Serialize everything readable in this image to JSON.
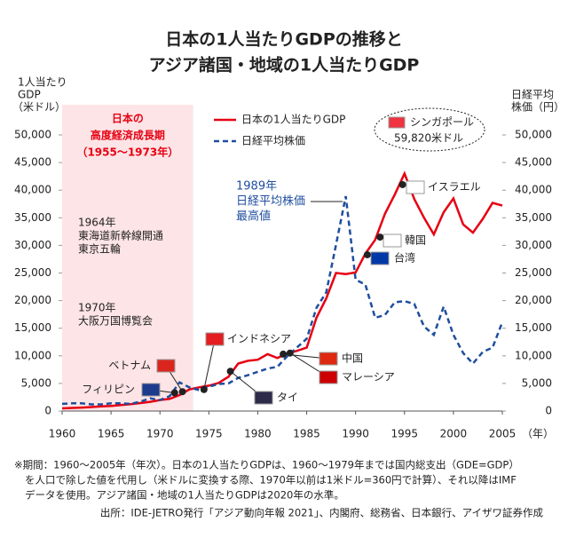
{
  "chart_data": {
    "type": "line",
    "title": [
      "日本の1人当たりGDPの推移と",
      "アジア諸国・地域の1人当たりGDP"
    ],
    "y_label": [
      "1人当たり",
      "GDP",
      "（米ドル）"
    ],
    "y2_label": [
      "日経平均",
      "株価（円）"
    ],
    "x_unit": "（年）",
    "x": [
      1960,
      1961,
      1962,
      1963,
      1964,
      1965,
      1966,
      1967,
      1968,
      1969,
      1970,
      1971,
      1972,
      1973,
      1974,
      1975,
      1976,
      1977,
      1978,
      1979,
      1980,
      1981,
      1982,
      1983,
      1984,
      1985,
      1986,
      1987,
      1988,
      1989,
      1990,
      1991,
      1992,
      1993,
      1994,
      1995,
      1996,
      1997,
      1998,
      1999,
      2000,
      2001,
      2002,
      2003,
      2004,
      2005
    ],
    "series": [
      {
        "name": "日本の1人当たりGDP",
        "color": "#e60012",
        "values": [
          475,
          560,
          630,
          720,
          840,
          920,
          1070,
          1230,
          1450,
          1670,
          2000,
          2200,
          2900,
          3900,
          4300,
          4600,
          5100,
          6200,
          8600,
          9100,
          9300,
          10300,
          9600,
          10400,
          10900,
          11500,
          16900,
          20400,
          25000,
          24800,
          25100,
          28500,
          31000,
          35700,
          39200,
          43000,
          38400,
          35000,
          32000,
          36000,
          38500,
          33800,
          32300,
          34800,
          37700,
          37200
        ]
      },
      {
        "name": "日経平均株価",
        "color": "#1f4e9e",
        "axis": "y2",
        "values": [
          1300,
          1400,
          1400,
          1200,
          1200,
          1400,
          1400,
          1300,
          1700,
          2300,
          2000,
          2700,
          5200,
          4300,
          3800,
          4400,
          4900,
          5000,
          6000,
          6500,
          7100,
          7700,
          8000,
          9900,
          11500,
          13100,
          18700,
          21500,
          30100,
          38900,
          23800,
          22900,
          16900,
          17400,
          19700,
          19900,
          19400,
          15300,
          13800,
          18900,
          13800,
          10500,
          8600,
          10700,
          11500,
          16100
        ]
      }
    ],
    "xlim": [
      1960,
      2005
    ],
    "xticks": [
      1960,
      1965,
      1970,
      1975,
      1980,
      1985,
      1990,
      1995,
      2000,
      2005
    ],
    "ylim": [
      0,
      50000
    ],
    "yticks": [
      0,
      {
        "value": 5000,
        "label": "5,000"
      },
      {
        "value": 10000,
        "label": "10,000"
      },
      {
        "value": 15000,
        "label": "15,000"
      },
      {
        "value": 20000,
        "label": "20,000"
      },
      {
        "value": 25000,
        "label": "25,000"
      },
      {
        "value": 30000,
        "label": "30,000"
      },
      {
        "value": 35000,
        "label": "35,000"
      },
      {
        "value": 40000,
        "label": "40,000"
      },
      {
        "value": 45000,
        "label": "45,000"
      },
      {
        "value": 50000,
        "label": "50,000"
      }
    ],
    "y2lim": [
      0,
      50000
    ],
    "y2ticks": [
      0,
      {
        "value": 5000,
        "label": "5,000"
      },
      {
        "value": 10000,
        "label": "10,000"
      },
      {
        "value": 15000,
        "label": "15,000"
      },
      {
        "value": 20000,
        "label": "20,000"
      },
      {
        "value": 25000,
        "label": "25,000"
      },
      {
        "value": 30000,
        "label": "30,000"
      },
      {
        "value": 35000,
        "label": "35,000"
      },
      {
        "value": 40000,
        "label": "40,000"
      },
      {
        "value": 45000,
        "label": "45,000"
      },
      {
        "value": 50000,
        "label": "50,000"
      }
    ],
    "period": {
      "x": [
        1960,
        1973.4
      ],
      "label": [
        "日本の",
        "高度経済成長期",
        "（1955～1973年）"
      ]
    },
    "events": [
      [
        "1964年",
        "東海道新幹線開通",
        "東京五輪"
      ],
      [
        "1970年",
        "大阪万国博覧会"
      ]
    ],
    "peak_note": [
      "1989年",
      "日経平均株価",
      "最高値"
    ],
    "countries": [
      {
        "name": "フィリピン",
        "x": 1971.5,
        "y": 3300
      },
      {
        "name": "ベトナム",
        "x": 1972.3,
        "y": 3500
      },
      {
        "name": "インドネシア",
        "x": 1974.5,
        "y": 3900
      },
      {
        "name": "タイ",
        "x": 1977.2,
        "y": 7200
      },
      {
        "name": "中国",
        "x": 1982.6,
        "y": 10300
      },
      {
        "name": "マレーシア",
        "x": 1983.3,
        "y": 10500
      },
      {
        "name": "台湾",
        "x": 1991.2,
        "y": 28300
      },
      {
        "name": "韓国",
        "x": 1992.5,
        "y": 31500
      },
      {
        "name": "イスラエル",
        "x": 1994.8,
        "y": 41000
      }
    ],
    "singapore": {
      "name": "シンガポール",
      "value": 59820,
      "value_label": "59,820米ドル"
    },
    "notes": [
      "※期間：1960～2005年（年次）。日本の1人当たりGDPは、1960～1979年までは国内総支出（GDE=GDP）",
      "を人口で除した値を代用し（米ドルに変換する際、1970年以前は1米ドル=360円で計算）、それ以降はIMF",
      "データを使用。アジア諸国・地域の1人当たりGDPは2020年の水準。"
    ],
    "source": "出所：IDE-JETRO発行「アジア動向年報 2021」、内閣府、総務省、日本銀行、アイザワ証券作成"
  }
}
